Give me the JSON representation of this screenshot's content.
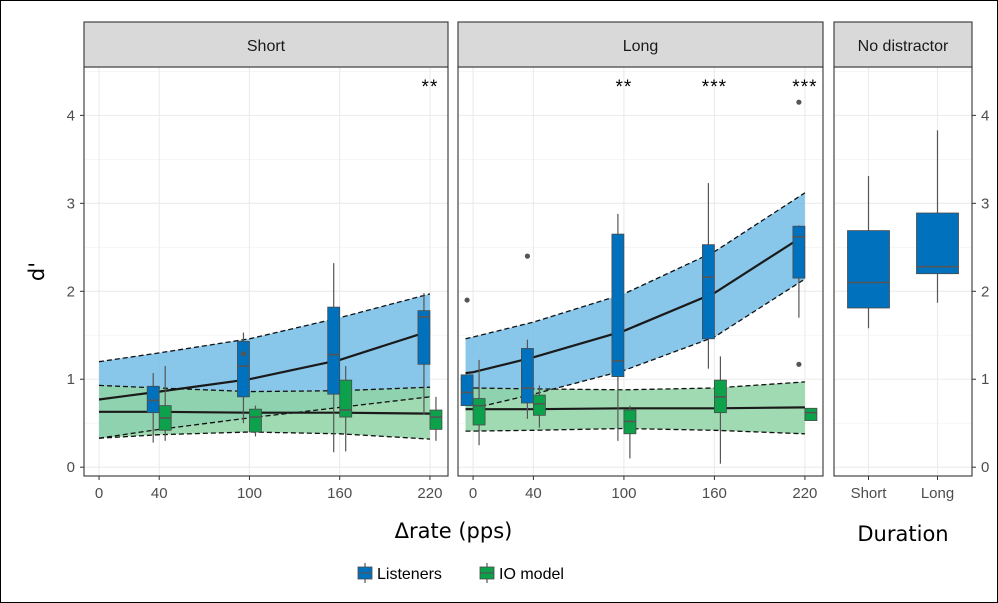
{
  "chart_data": {
    "type": "box",
    "ylabel": "d'",
    "xlabel": "Δrate (pps)",
    "xlabel_right": "Duration",
    "ylim": [
      -0.1,
      4.55
    ],
    "y_ticks": [
      0,
      1,
      2,
      3,
      4
    ],
    "x_ticks": [
      0,
      40,
      100,
      160,
      220
    ],
    "xlim": [
      -10,
      232
    ],
    "colors": {
      "listeners": "#0072bd",
      "io_model": "#0ca14a",
      "listeners_ribbon": "#74bde6",
      "io_ribbon": "#8fd3a5"
    },
    "legend": {
      "position": "bottom",
      "entries": [
        {
          "key": "listeners",
          "label": "Listeners"
        },
        {
          "key": "io_model",
          "label": "IO model"
        }
      ]
    },
    "panels": [
      {
        "label": "Short",
        "significance": [
          {
            "x": 220,
            "label": "**"
          }
        ],
        "fits": {
          "listeners": {
            "fit": [
              [
                0,
                0.77
              ],
              [
                40,
                0.86
              ],
              [
                100,
                1.0
              ],
              [
                160,
                1.22
              ],
              [
                220,
                1.55
              ]
            ],
            "lower": [
              [
                0,
                0.33
              ],
              [
                40,
                0.43
              ],
              [
                100,
                0.56
              ],
              [
                160,
                0.68
              ],
              [
                220,
                0.8
              ]
            ],
            "upper": [
              [
                0,
                1.2
              ],
              [
                40,
                1.3
              ],
              [
                100,
                1.46
              ],
              [
                160,
                1.7
              ],
              [
                220,
                1.97
              ]
            ]
          },
          "io_model": {
            "fit": [
              [
                0,
                0.63
              ],
              [
                40,
                0.63
              ],
              [
                100,
                0.62
              ],
              [
                160,
                0.62
              ],
              [
                220,
                0.61
              ]
            ],
            "lower": [
              [
                0,
                0.33
              ],
              [
                40,
                0.37
              ],
              [
                100,
                0.4
              ],
              [
                160,
                0.38
              ],
              [
                220,
                0.32
              ]
            ],
            "upper": [
              [
                0,
                0.93
              ],
              [
                40,
                0.9
              ],
              [
                100,
                0.86
              ],
              [
                160,
                0.87
              ],
              [
                220,
                0.91
              ]
            ]
          }
        },
        "boxes": [
          {
            "group": "listeners",
            "x": 40,
            "min": 0.28,
            "q1": 0.62,
            "median": 0.76,
            "q3": 0.92,
            "max": 1.07,
            "outliers": []
          },
          {
            "group": "io_model",
            "x": 40,
            "min": 0.3,
            "q1": 0.42,
            "median": 0.56,
            "q3": 0.7,
            "max": 1.15,
            "outliers": []
          },
          {
            "group": "listeners",
            "x": 100,
            "min": 0.5,
            "q1": 0.8,
            "median": 1.15,
            "q3": 1.43,
            "max": 1.53,
            "outliers": [
              1.29
            ]
          },
          {
            "group": "io_model",
            "x": 100,
            "min": 0.35,
            "q1": 0.4,
            "median": 0.57,
            "q3": 0.66,
            "max": 0.7,
            "outliers": []
          },
          {
            "group": "listeners",
            "x": 160,
            "min": 0.17,
            "q1": 0.83,
            "median": 1.28,
            "q3": 1.82,
            "max": 2.32,
            "outliers": []
          },
          {
            "group": "io_model",
            "x": 160,
            "min": 0.18,
            "q1": 0.57,
            "median": 0.65,
            "q3": 0.99,
            "max": 1.15,
            "outliers": []
          },
          {
            "group": "listeners",
            "x": 220,
            "min": 0.6,
            "q1": 1.17,
            "median": 1.71,
            "q3": 1.78,
            "max": 1.98,
            "outliers": []
          },
          {
            "group": "io_model",
            "x": 220,
            "min": 0.3,
            "q1": 0.43,
            "median": 0.57,
            "q3": 0.65,
            "max": 0.8,
            "outliers": []
          }
        ]
      },
      {
        "label": "Long",
        "significance": [
          {
            "x": 100,
            "label": "**"
          },
          {
            "x": 160,
            "label": "***"
          },
          {
            "x": 220,
            "label": "***"
          }
        ],
        "fits": {
          "listeners": {
            "fit": [
              [
                -5,
                1.07
              ],
              [
                0,
                1.08
              ],
              [
                40,
                1.25
              ],
              [
                100,
                1.55
              ],
              [
                160,
                1.98
              ],
              [
                220,
                2.64
              ]
            ],
            "lower": [
              [
                -5,
                0.66
              ],
              [
                0,
                0.67
              ],
              [
                40,
                0.83
              ],
              [
                100,
                1.1
              ],
              [
                160,
                1.48
              ],
              [
                220,
                2.14
              ]
            ],
            "upper": [
              [
                -5,
                1.46
              ],
              [
                0,
                1.48
              ],
              [
                40,
                1.65
              ],
              [
                100,
                1.97
              ],
              [
                160,
                2.45
              ],
              [
                220,
                3.12
              ]
            ]
          },
          "io_model": {
            "fit": [
              [
                -5,
                0.66
              ],
              [
                0,
                0.66
              ],
              [
                40,
                0.66
              ],
              [
                100,
                0.67
              ],
              [
                160,
                0.67
              ],
              [
                220,
                0.68
              ]
            ],
            "lower": [
              [
                -5,
                0.41
              ],
              [
                0,
                0.41
              ],
              [
                40,
                0.42
              ],
              [
                100,
                0.44
              ],
              [
                160,
                0.42
              ],
              [
                220,
                0.38
              ]
            ],
            "upper": [
              [
                -5,
                0.9
              ],
              [
                0,
                0.9
              ],
              [
                40,
                0.89
              ],
              [
                100,
                0.88
              ],
              [
                160,
                0.9
              ],
              [
                220,
                0.97
              ]
            ]
          }
        },
        "boxes": [
          {
            "group": "listeners",
            "x": 0,
            "min": 0.7,
            "q1": 0.7,
            "median": 0.85,
            "q3": 1.05,
            "max": 1.05,
            "outliers": [
              1.9
            ]
          },
          {
            "group": "io_model",
            "x": 0,
            "min": 0.25,
            "q1": 0.48,
            "median": 0.7,
            "q3": 0.78,
            "max": 1.22,
            "outliers": []
          },
          {
            "group": "listeners",
            "x": 40,
            "min": 0.55,
            "q1": 0.73,
            "median": 0.9,
            "q3": 1.35,
            "max": 1.45,
            "outliers": [
              2.4
            ]
          },
          {
            "group": "io_model",
            "x": 40,
            "min": 0.45,
            "q1": 0.59,
            "median": 0.72,
            "q3": 0.82,
            "max": 0.93,
            "outliers": []
          },
          {
            "group": "listeners",
            "x": 100,
            "min": 0.3,
            "q1": 1.03,
            "median": 1.21,
            "q3": 2.65,
            "max": 2.88,
            "outliers": []
          },
          {
            "group": "io_model",
            "x": 100,
            "min": 0.1,
            "q1": 0.38,
            "median": 0.52,
            "q3": 0.65,
            "max": 0.7,
            "outliers": []
          },
          {
            "group": "listeners",
            "x": 160,
            "min": 1.12,
            "q1": 1.46,
            "median": 2.16,
            "q3": 2.53,
            "max": 3.23,
            "outliers": []
          },
          {
            "group": "io_model",
            "x": 160,
            "min": 0.04,
            "q1": 0.62,
            "median": 0.8,
            "q3": 0.99,
            "max": 1.26,
            "outliers": []
          },
          {
            "group": "listeners",
            "x": 220,
            "min": 1.7,
            "q1": 2.15,
            "median": 2.62,
            "q3": 2.74,
            "max": 2.75,
            "outliers": [
              4.15,
              1.17
            ]
          },
          {
            "group": "io_model",
            "x": 220,
            "min": 0.53,
            "q1": 0.53,
            "median": 0.62,
            "q3": 0.67,
            "max": 0.67,
            "outliers": []
          }
        ]
      },
      {
        "label": "No distractor",
        "categories": [
          "Short",
          "Long"
        ],
        "boxes": [
          {
            "group": "listeners",
            "category": "Short",
            "min": 1.58,
            "q1": 1.81,
            "median": 2.1,
            "q3": 2.69,
            "max": 3.31,
            "outliers": []
          },
          {
            "group": "listeners",
            "category": "Long",
            "min": 1.87,
            "q1": 2.2,
            "median": 2.28,
            "q3": 2.89,
            "max": 3.83,
            "outliers": []
          }
        ]
      }
    ]
  }
}
